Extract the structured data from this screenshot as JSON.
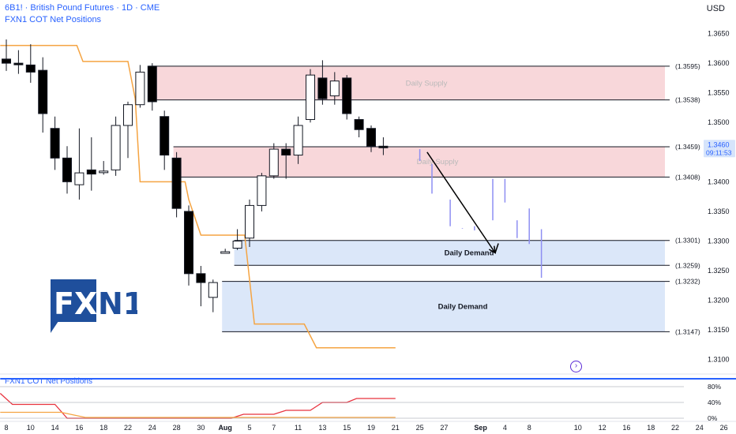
{
  "header": {
    "title": "6B1! · British Pound Futures · 1D · CME",
    "indicator": "FXN1 COT Net Positions"
  },
  "price_axis": {
    "currency": "USD"
  },
  "subpane": {
    "title": "FXN1 COT Net Positions"
  },
  "logo": {
    "text_fx": "FX",
    "text_n1": "N1"
  },
  "colors": {
    "up": "#ffffff",
    "down": "#000000",
    "supply_fill": "#f8d7da",
    "demand_fill": "#dbe7f9",
    "orange": "#f5a442",
    "red": "#e8333f",
    "blue": "#2962ff",
    "projection": "#8e8ff2",
    "current_price_tag": "#d6e4fb",
    "current_price_text": "#2962ff"
  },
  "icons": {
    "jump_to_realtime": "chevron-right-circle-icon"
  },
  "chart_data": [
    {
      "type": "candlestick",
      "title": "6B1! · British Pound Futures · 1D · CME",
      "ylabel": "USD",
      "ylim": [
        1.3085,
        1.368
      ],
      "y_ticks": [
        1.31,
        1.315,
        1.32,
        1.325,
        1.33,
        1.335,
        1.34,
        1.345,
        1.35,
        1.355,
        1.36,
        1.365
      ],
      "y_tick_labels": [
        "1.3100",
        "1.3150",
        "1.3200",
        "1.3250",
        "1.3300",
        "1.3350",
        "1.3400",
        "1.3450",
        "1.3500",
        "1.3550",
        "1.3600",
        "1.3650"
      ],
      "x_ticks": [
        {
          "label": "8",
          "i": 0
        },
        {
          "label": "10",
          "i": 2
        },
        {
          "label": "14",
          "i": 4
        },
        {
          "label": "16",
          "i": 6
        },
        {
          "label": "18",
          "i": 8
        },
        {
          "label": "22",
          "i": 10
        },
        {
          "label": "24",
          "i": 12
        },
        {
          "label": "28",
          "i": 14
        },
        {
          "label": "30",
          "i": 16
        },
        {
          "label": "Aug",
          "i": 18,
          "bold": true
        },
        {
          "label": "5",
          "i": 20
        },
        {
          "label": "7",
          "i": 22
        },
        {
          "label": "11",
          "i": 24
        },
        {
          "label": "13",
          "i": 26
        },
        {
          "label": "15",
          "i": 28
        },
        {
          "label": "19",
          "i": 30
        },
        {
          "label": "21",
          "i": 32
        },
        {
          "label": "25",
          "i": 34
        },
        {
          "label": "27",
          "i": 36
        },
        {
          "label": "Sep",
          "i": 39,
          "bold": true
        },
        {
          "label": "4",
          "i": 41
        },
        {
          "label": "8",
          "i": 43
        },
        {
          "label": "10",
          "i": 47
        },
        {
          "label": "12",
          "i": 49
        },
        {
          "label": "16",
          "i": 51
        },
        {
          "label": "18",
          "i": 53
        },
        {
          "label": "22",
          "i": 55
        },
        {
          "label": "24",
          "i": 57
        },
        {
          "label": "26",
          "i": 59
        }
      ],
      "candles": [
        {
          "o": 1.3607,
          "h": 1.364,
          "l": 1.3587,
          "c": 1.36
        },
        {
          "o": 1.36,
          "h": 1.3622,
          "l": 1.3582,
          "c": 1.3598
        },
        {
          "o": 1.3597,
          "h": 1.3632,
          "l": 1.3567,
          "c": 1.3585
        },
        {
          "o": 1.3588,
          "h": 1.361,
          "l": 1.3483,
          "c": 1.3515
        },
        {
          "o": 1.349,
          "h": 1.351,
          "l": 1.342,
          "c": 1.344
        },
        {
          "o": 1.344,
          "h": 1.346,
          "l": 1.338,
          "c": 1.34
        },
        {
          "o": 1.3395,
          "h": 1.349,
          "l": 1.337,
          "c": 1.3415
        },
        {
          "o": 1.342,
          "h": 1.3475,
          "l": 1.3385,
          "c": 1.3413
        },
        {
          "o": 1.3418,
          "h": 1.3435,
          "l": 1.3412,
          "c": 1.3418
        },
        {
          "o": 1.342,
          "h": 1.351,
          "l": 1.341,
          "c": 1.3495
        },
        {
          "o": 1.3495,
          "h": 1.3535,
          "l": 1.344,
          "c": 1.353
        },
        {
          "o": 1.353,
          "h": 1.3597,
          "l": 1.3525,
          "c": 1.3585
        },
        {
          "o": 1.3595,
          "h": 1.36,
          "l": 1.352,
          "c": 1.3535
        },
        {
          "o": 1.351,
          "h": 1.352,
          "l": 1.342,
          "c": 1.3445
        },
        {
          "o": 1.344,
          "h": 1.345,
          "l": 1.334,
          "c": 1.3355
        },
        {
          "o": 1.335,
          "h": 1.336,
          "l": 1.3225,
          "c": 1.3245
        },
        {
          "o": 1.3245,
          "h": 1.3258,
          "l": 1.319,
          "c": 1.323
        },
        {
          "o": 1.3205,
          "h": 1.3235,
          "l": 1.318,
          "c": 1.323
        },
        {
          "o": 1.3282,
          "h": 1.3287,
          "l": 1.328,
          "c": 1.3282
        },
        {
          "o": 1.3288,
          "h": 1.332,
          "l": 1.3285,
          "c": 1.33
        },
        {
          "o": 1.3305,
          "h": 1.337,
          "l": 1.329,
          "c": 1.336
        },
        {
          "o": 1.336,
          "h": 1.3415,
          "l": 1.335,
          "c": 1.341
        },
        {
          "o": 1.341,
          "h": 1.3465,
          "l": 1.3405,
          "c": 1.3455
        },
        {
          "o": 1.3455,
          "h": 1.3465,
          "l": 1.3405,
          "c": 1.3445
        },
        {
          "o": 1.3445,
          "h": 1.351,
          "l": 1.343,
          "c": 1.3495
        },
        {
          "o": 1.3505,
          "h": 1.359,
          "l": 1.35,
          "c": 1.358
        },
        {
          "o": 1.3575,
          "h": 1.3605,
          "l": 1.353,
          "c": 1.354
        },
        {
          "o": 1.3545,
          "h": 1.3585,
          "l": 1.353,
          "c": 1.357
        },
        {
          "o": 1.3575,
          "h": 1.358,
          "l": 1.3505,
          "c": 1.3515
        },
        {
          "o": 1.3505,
          "h": 1.351,
          "l": 1.3475,
          "c": 1.3488
        },
        {
          "o": 1.349,
          "h": 1.3495,
          "l": 1.345,
          "c": 1.346
        },
        {
          "o": 1.346,
          "h": 1.3475,
          "l": 1.3445,
          "c": 1.3458
        }
      ],
      "zones": [
        {
          "label": "Daily Supply",
          "top": 1.3595,
          "bottom": 1.3538,
          "i_start": 12,
          "top_label": "(1.3595)",
          "bottom_label": "(1.3538)"
        },
        {
          "label": "Daily Supply",
          "top": 1.3459,
          "bottom": 1.3408,
          "i_start": 14,
          "top_label": "(1.3459)",
          "bottom_label": "(1.3408)"
        },
        {
          "label": "Daily Demand",
          "top": 1.3301,
          "bottom": 1.3259,
          "i_start": 19,
          "top_label": "(1.3301)",
          "bottom_label": "(1.3259)"
        },
        {
          "label": "Daily Demand",
          "top": 1.3232,
          "bottom": 1.3147,
          "i_start": 18,
          "top_label": "(1.3232)",
          "bottom_label": "(1.3147)"
        }
      ],
      "current_price": {
        "value": "1.3460",
        "countdown": "09:11:53",
        "y": 1.346
      },
      "projection_bars": [
        {
          "i": 34,
          "hi": 1.3455,
          "lo": 1.3435
        },
        {
          "i": 35,
          "hi": 1.343,
          "lo": 1.338
        },
        {
          "i": 36.5,
          "hi": 1.337,
          "lo": 1.3325
        },
        {
          "i": 37.5,
          "hi": 1.3322,
          "lo": 1.3321
        },
        {
          "i": 38.5,
          "hi": 1.3325,
          "lo": 1.3318
        },
        {
          "i": 40,
          "hi": 1.3405,
          "lo": 1.3335
        },
        {
          "i": 41,
          "hi": 1.3405,
          "lo": 1.3365
        },
        {
          "i": 42,
          "hi": 1.3335,
          "lo": 1.3305
        },
        {
          "i": 43,
          "hi": 1.3355,
          "lo": 1.3295
        },
        {
          "i": 44,
          "hi": 1.332,
          "lo": 1.3238
        }
      ],
      "projection_arrow": {
        "from": {
          "i": 34.6,
          "y": 1.345
        },
        "to": {
          "i": 40.2,
          "y": 1.328
        }
      },
      "orange_line": [
        {
          "i": -0.5,
          "y": 1.363
        },
        {
          "i": 5.8,
          "y": 1.363
        },
        {
          "i": 6.3,
          "y": 1.3603
        },
        {
          "i": 10,
          "y": 1.3603
        },
        {
          "i": 10.6,
          "y": 1.354
        },
        {
          "i": 11,
          "y": 1.34
        },
        {
          "i": 14.7,
          "y": 1.34
        },
        {
          "i": 15,
          "y": 1.337
        },
        {
          "i": 16,
          "y": 1.331
        },
        {
          "i": 19.6,
          "y": 1.331
        },
        {
          "i": 20.4,
          "y": 1.316
        },
        {
          "i": 24.5,
          "y": 1.316
        },
        {
          "i": 25.5,
          "y": 1.312
        },
        {
          "i": 32,
          "y": 1.312
        }
      ]
    },
    {
      "type": "line",
      "title": "FXN1 COT Net Positions",
      "ylim": [
        0,
        100
      ],
      "y_tick_labels": [
        "0%",
        "40%",
        "80%"
      ],
      "y_ticks": [
        0,
        40,
        80
      ],
      "series": [
        {
          "color": "#2962ff",
          "points": [
            {
              "i": -0.5,
              "y": 100
            },
            {
              "i": 60,
              "y": 100
            }
          ]
        },
        {
          "color": "#e8333f",
          "points": [
            {
              "i": -0.5,
              "y": 63
            },
            {
              "i": 0.5,
              "y": 35
            },
            {
              "i": 4,
              "y": 35
            },
            {
              "i": 5,
              "y": 0
            },
            {
              "i": 18.5,
              "y": 0
            },
            {
              "i": 19.5,
              "y": 10
            },
            {
              "i": 22,
              "y": 10
            },
            {
              "i": 23,
              "y": 20
            },
            {
              "i": 25,
              "y": 20
            },
            {
              "i": 26,
              "y": 40
            },
            {
              "i": 28,
              "y": 40
            },
            {
              "i": 28.8,
              "y": 50
            },
            {
              "i": 32,
              "y": 50
            }
          ]
        },
        {
          "color": "#f5a442",
          "points": [
            {
              "i": -0.5,
              "y": 15
            },
            {
              "i": 4.5,
              "y": 15
            },
            {
              "i": 6.5,
              "y": 2
            },
            {
              "i": 18.5,
              "y": 2
            },
            {
              "i": 19.5,
              "y": 2
            },
            {
              "i": 32,
              "y": 2
            }
          ]
        }
      ]
    }
  ]
}
